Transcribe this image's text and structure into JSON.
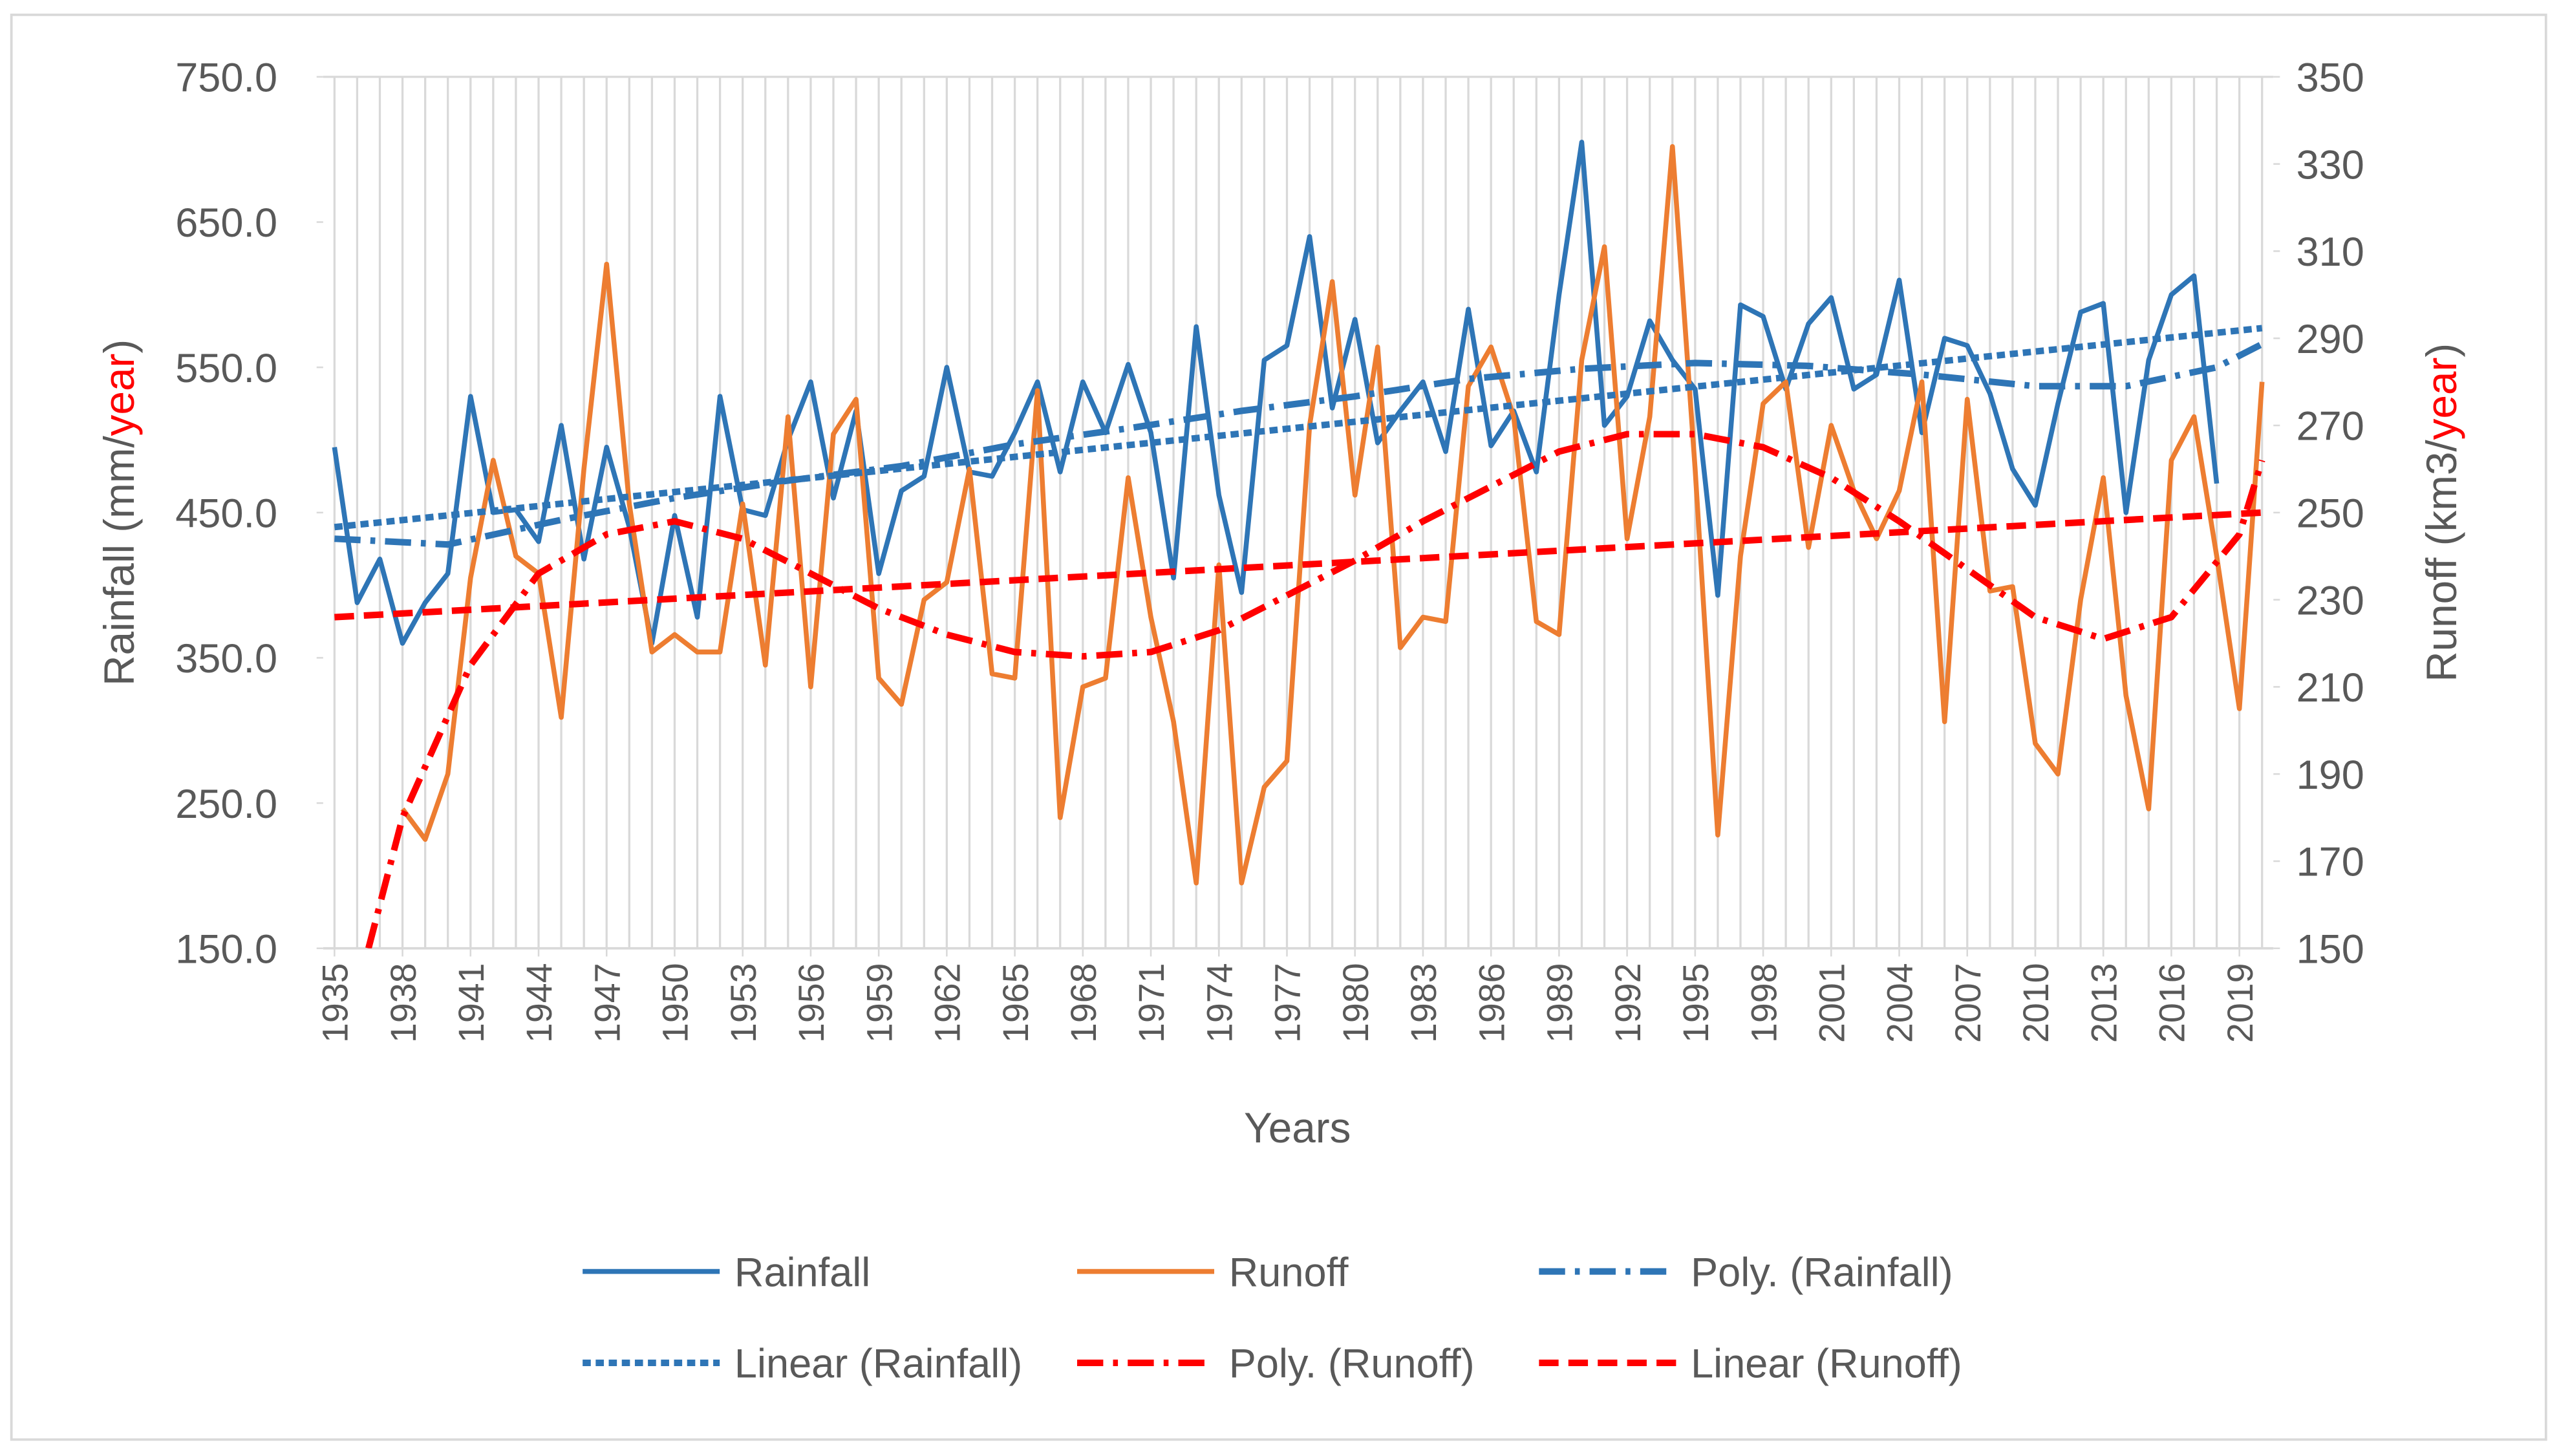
{
  "chart_data": {
    "type": "line",
    "xlabel": "Years",
    "ylabel_parts": [
      {
        "text": "Rainfall (mm/",
        "color": "#595959"
      },
      {
        "text": "year",
        "color": "#ff0000"
      },
      {
        "text": ")",
        "color": "#595959"
      }
    ],
    "y2label_parts": [
      {
        "text": "Runoff (km3/",
        "color": "#595959"
      },
      {
        "text": "year",
        "color": "#ff0000"
      },
      {
        "text": ")",
        "color": "#595959"
      }
    ],
    "x": [
      1935,
      1936,
      1937,
      1938,
      1939,
      1940,
      1941,
      1942,
      1943,
      1944,
      1945,
      1946,
      1947,
      1948,
      1949,
      1950,
      1951,
      1952,
      1953,
      1954,
      1955,
      1956,
      1957,
      1958,
      1959,
      1960,
      1961,
      1962,
      1963,
      1964,
      1965,
      1966,
      1967,
      1968,
      1969,
      1970,
      1971,
      1972,
      1973,
      1974,
      1975,
      1976,
      1977,
      1978,
      1979,
      1980,
      1981,
      1982,
      1983,
      1984,
      1985,
      1986,
      1987,
      1988,
      1989,
      1990,
      1991,
      1992,
      1993,
      1994,
      1995,
      1996,
      1997,
      1998,
      1999,
      2000,
      2001,
      2002,
      2003,
      2004,
      2005,
      2006,
      2007,
      2008,
      2009,
      2010,
      2011,
      2012,
      2013,
      2014,
      2015,
      2016,
      2017,
      2018,
      2019,
      2020
    ],
    "xlim": [
      1934.5,
      2020.5
    ],
    "xticks": [
      1935,
      1938,
      1941,
      1944,
      1947,
      1950,
      1953,
      1956,
      1959,
      1962,
      1965,
      1968,
      1971,
      1974,
      1977,
      1980,
      1983,
      1986,
      1989,
      1992,
      1995,
      1998,
      2001,
      2004,
      2007,
      2010,
      2013,
      2016,
      2019
    ],
    "ylim": [
      150,
      750
    ],
    "yticks": [
      {
        "value": 150,
        "label": "150.0"
      },
      {
        "value": 250,
        "label": "250.0"
      },
      {
        "value": 350,
        "label": "350.0"
      },
      {
        "value": 450,
        "label": "450.0"
      },
      {
        "value": 550,
        "label": "550.0"
      },
      {
        "value": 650,
        "label": "650.0"
      },
      {
        "value": 750,
        "label": "750.0"
      }
    ],
    "y2lim": [
      150,
      350
    ],
    "y2ticks": [
      150,
      170,
      190,
      210,
      230,
      250,
      270,
      290,
      310,
      330,
      350
    ],
    "grid": "x",
    "legend": "bottom",
    "series": [
      {
        "name": "Rainfall",
        "color": "#2e75b6",
        "style": "solid",
        "values": [
          495,
          388,
          418,
          360,
          388,
          408,
          530,
          450,
          452,
          430,
          510,
          418,
          495,
          440,
          360,
          448,
          378,
          530,
          452,
          448,
          500,
          540,
          460,
          520,
          408,
          465,
          475,
          550,
          478,
          475,
          505,
          540,
          478,
          540,
          505,
          552,
          505,
          405,
          578,
          462,
          395,
          555,
          565,
          640,
          522,
          583,
          498,
          520,
          540,
          492,
          590,
          496,
          520,
          478,
          600,
          705,
          510,
          530,
          582,
          555,
          535,
          393,
          593,
          585,
          535,
          580,
          598,
          535,
          545,
          610,
          505,
          570,
          565,
          532,
          480,
          455,
          525,
          588,
          594,
          450,
          555,
          600,
          613,
          470,
          null,
          null
        ]
      },
      {
        "name": "Runoff",
        "color": "#ed7d31",
        "style": "solid",
        "axis": "y2",
        "values": [
          null,
          null,
          null,
          182,
          175,
          190,
          235,
          262,
          240,
          236,
          203,
          260,
          307,
          252,
          218,
          222,
          218,
          218,
          252,
          215,
          272,
          210,
          268,
          276,
          212,
          206,
          230,
          234,
          260,
          213,
          212,
          278,
          180,
          210,
          212,
          258,
          226,
          202,
          165,
          238,
          165,
          187,
          193,
          270,
          303,
          254,
          288,
          219,
          226,
          225,
          279,
          288,
          272,
          225,
          222,
          285,
          311,
          244,
          272,
          334,
          260,
          176,
          240,
          275,
          280,
          242,
          270,
          255,
          244,
          255,
          280,
          202,
          276,
          232,
          233,
          197,
          190,
          230,
          258,
          208,
          182,
          262,
          272,
          240,
          205,
          280
        ]
      },
      {
        "name": "Poly. (Rainfall)",
        "color": "#2e75b6",
        "style": "dashdot",
        "x": [
          1935,
          1940,
          1945,
          1950,
          1955,
          1960,
          1965,
          1970,
          1975,
          1980,
          1985,
          1990,
          1995,
          2000,
          2005,
          2010,
          2014,
          2018,
          2020
        ],
        "values": [
          432,
          428,
          445,
          460,
          472,
          482,
          497,
          508,
          520,
          530,
          542,
          549,
          553,
          551,
          545,
          537,
          537,
          550,
          566
        ]
      },
      {
        "name": "Linear (Rainfall)",
        "color": "#2e75b6",
        "style": "dotted",
        "x": [
          1935,
          2020
        ],
        "values": [
          440,
          577
        ]
      },
      {
        "name": "Poly. (Runoff)",
        "color": "#ff0000",
        "style": "dashdot",
        "axis": "y2",
        "x": [
          1936.5,
          1938,
          1941,
          1944,
          1947,
          1950,
          1953,
          1956,
          1959,
          1962,
          1965,
          1968,
          1971,
          1974,
          1977,
          1980,
          1983,
          1986,
          1989,
          1992,
          1995,
          1998,
          2001,
          2004,
          2007,
          2010,
          2013,
          2016,
          2019,
          2020
        ],
        "values": [
          150,
          180,
          215,
          236,
          245,
          248,
          244,
          236,
          228,
          222,
          218,
          217,
          218,
          223,
          231,
          239,
          248,
          256,
          264,
          268,
          268,
          265,
          258,
          248,
          237,
          226,
          221,
          226,
          245,
          262
        ]
      },
      {
        "name": "Linear (Runoff)",
        "color": "#ff0000",
        "style": "dashed",
        "axis": "y2",
        "x": [
          1935,
          2020
        ],
        "values": [
          226,
          250
        ]
      }
    ]
  }
}
